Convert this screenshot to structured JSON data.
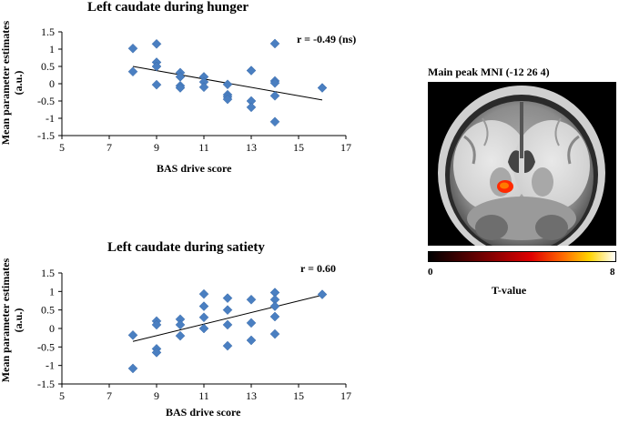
{
  "chart_data": [
    {
      "type": "scatter",
      "title": "Left caudate during hunger",
      "annotation": "r = -0.49 (ns)",
      "xlabel": "BAS drive score",
      "ylabel": "Mean parameter estimates (a.u.)",
      "ylabel_line1": "Mean parameter estimates",
      "ylabel_line2": "(a.u.)",
      "xlim": [
        5,
        17
      ],
      "ylim": [
        -1.5,
        1.5
      ],
      "xticks": [
        "5",
        "7",
        "9",
        "11",
        "13",
        "15",
        "17"
      ],
      "yticks": [
        "1.5",
        "1",
        "0.5",
        "0",
        "-0.5",
        "-1",
        "-1.5"
      ],
      "points": [
        {
          "x": 8,
          "y": 1.02
        },
        {
          "x": 8,
          "y": 0.35
        },
        {
          "x": 9,
          "y": 1.15
        },
        {
          "x": 9,
          "y": 0.62
        },
        {
          "x": 9,
          "y": 0.5
        },
        {
          "x": 9,
          "y": -0.03
        },
        {
          "x": 10,
          "y": 0.32
        },
        {
          "x": 10,
          "y": 0.2
        },
        {
          "x": 10,
          "y": -0.06
        },
        {
          "x": 10,
          "y": -0.12
        },
        {
          "x": 11,
          "y": 0.2
        },
        {
          "x": 11,
          "y": 0.05
        },
        {
          "x": 11,
          "y": -0.1
        },
        {
          "x": 12,
          "y": -0.02
        },
        {
          "x": 12,
          "y": -0.32
        },
        {
          "x": 12,
          "y": -0.38
        },
        {
          "x": 12,
          "y": -0.45
        },
        {
          "x": 13,
          "y": 0.38
        },
        {
          "x": 13,
          "y": -0.5
        },
        {
          "x": 13,
          "y": -0.68
        },
        {
          "x": 14,
          "y": 1.16
        },
        {
          "x": 14,
          "y": 0.08
        },
        {
          "x": 14,
          "y": 0.02
        },
        {
          "x": 14,
          "y": -0.35
        },
        {
          "x": 14,
          "y": -1.1
        },
        {
          "x": 16,
          "y": -0.12
        }
      ],
      "trendline": {
        "x": [
          8,
          16
        ],
        "y": [
          0.5,
          -0.47
        ]
      }
    },
    {
      "type": "scatter",
      "title": "Left caudate during satiety",
      "annotation": "r = 0.60",
      "xlabel": "BAS drive score",
      "ylabel": "Mean parameter estimates (a.u.)",
      "ylabel_line1": "Mean parameter estimates",
      "ylabel_line2": "(a.u.)",
      "xlim": [
        5,
        17
      ],
      "ylim": [
        -1.5,
        1.5
      ],
      "xticks": [
        "5",
        "7",
        "9",
        "11",
        "13",
        "15",
        "17"
      ],
      "yticks": [
        "1.5",
        "1",
        "0.5",
        "0",
        "-0.5",
        "-1",
        "-1.5"
      ],
      "points": [
        {
          "x": 8,
          "y": -0.18
        },
        {
          "x": 8,
          "y": -1.08
        },
        {
          "x": 9,
          "y": 0.2
        },
        {
          "x": 9,
          "y": 0.1
        },
        {
          "x": 9,
          "y": -0.55
        },
        {
          "x": 9,
          "y": -0.65
        },
        {
          "x": 10,
          "y": 0.25
        },
        {
          "x": 10,
          "y": 0.1
        },
        {
          "x": 10,
          "y": -0.2
        },
        {
          "x": 11,
          "y": 0.93
        },
        {
          "x": 11,
          "y": 0.6
        },
        {
          "x": 11,
          "y": 0.3
        },
        {
          "x": 11,
          "y": 0.0
        },
        {
          "x": 12,
          "y": 0.82
        },
        {
          "x": 12,
          "y": 0.5
        },
        {
          "x": 12,
          "y": 0.1
        },
        {
          "x": 12,
          "y": -0.47
        },
        {
          "x": 13,
          "y": 0.78
        },
        {
          "x": 13,
          "y": 0.15
        },
        {
          "x": 13,
          "y": -0.32
        },
        {
          "x": 14,
          "y": 0.97
        },
        {
          "x": 14,
          "y": 0.78
        },
        {
          "x": 14,
          "y": 0.6
        },
        {
          "x": 14,
          "y": 0.32
        },
        {
          "x": 14,
          "y": -0.15
        },
        {
          "x": 16,
          "y": 0.92
        }
      ],
      "trendline": {
        "x": [
          8,
          16
        ],
        "y": [
          -0.35,
          0.9
        ]
      }
    }
  ],
  "brain": {
    "title": "Main peak MNI (-12 26 4)",
    "colorbar_min": "0",
    "colorbar_max": "8",
    "colorbar_label": "T-value",
    "colors": {
      "marker": "#4a7fc1",
      "activation": "#ff2a00"
    }
  }
}
